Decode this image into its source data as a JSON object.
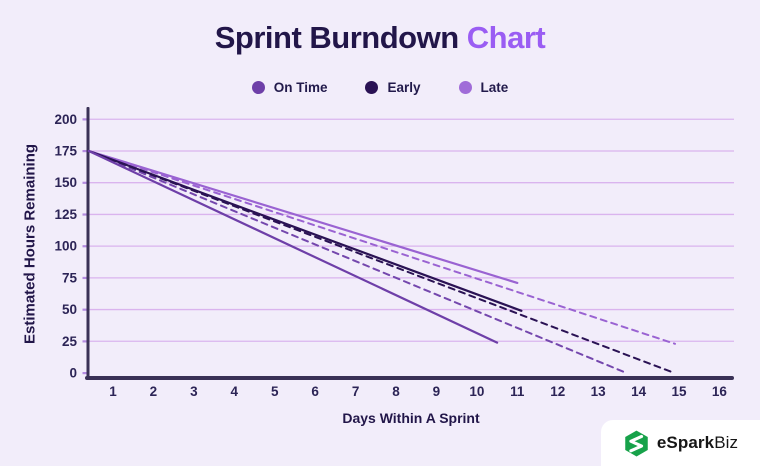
{
  "title": {
    "main": "Sprint Burndown",
    "accent": "Chart"
  },
  "legend": {
    "items": [
      {
        "label": "On Time",
        "color": "#6e3fa8"
      },
      {
        "label": "Early",
        "color": "#2a1254"
      },
      {
        "label": "Late",
        "color": "#a06cd8"
      }
    ]
  },
  "chart_data": {
    "type": "line",
    "title": "Sprint Burndown Chart",
    "xlabel": "Days Within A Sprint",
    "ylabel": "Estimated Hours Remaining",
    "x_ticks": [
      1,
      2,
      3,
      4,
      5,
      6,
      7,
      8,
      9,
      10,
      11,
      12,
      13,
      14,
      15,
      16
    ],
    "y_ticks": [
      0,
      25,
      50,
      75,
      100,
      125,
      150,
      175,
      200
    ],
    "xlim": [
      0,
      16.5
    ],
    "ylim": [
      0,
      210
    ],
    "grid": "horizontal gridlines every 25 hours, no vertical gridlines",
    "legend_position": "top-center",
    "start_point": {
      "day": 0.4,
      "hours": 175
    },
    "series": [
      {
        "name": "On Time (projection)",
        "legend": "On Time",
        "style": "dashed",
        "color": "#7447ad",
        "points": [
          [
            0.4,
            175
          ],
          [
            13.7,
            0
          ]
        ]
      },
      {
        "name": "Early (projection)",
        "legend": "Early",
        "style": "dashed",
        "color": "#2a1254",
        "points": [
          [
            0.4,
            175
          ],
          [
            14.8,
            1
          ]
        ]
      },
      {
        "name": "Late (projection)",
        "legend": "Late",
        "style": "dashed",
        "color": "#9a63d2",
        "points": [
          [
            0.4,
            175
          ],
          [
            14.9,
            23
          ]
        ]
      },
      {
        "name": "Late",
        "legend": "Late",
        "style": "solid",
        "color": "#9a63d2",
        "points": [
          [
            0.4,
            175
          ],
          [
            11.0,
            71
          ]
        ]
      },
      {
        "name": "Early",
        "legend": "Early",
        "style": "solid",
        "color": "#2a1254",
        "points": [
          [
            0.4,
            175
          ],
          [
            11.1,
            49
          ]
        ]
      },
      {
        "name": "On Time",
        "legend": "On Time",
        "style": "solid",
        "color": "#6e3fa8",
        "points": [
          [
            0.4,
            175
          ],
          [
            10.5,
            24
          ]
        ]
      }
    ]
  },
  "axis_style": {
    "axis_color": "#3a3156",
    "grid_color": "#dab4ee",
    "tick_color": "#b48be0",
    "tick_label_color": "#2c2456"
  },
  "background_color": "#f2edfa",
  "logo": {
    "text_bold": "eSpark",
    "text_regular": "Biz",
    "icon": "esparkbiz-hexagon-icon",
    "icon_color": "#17a24a",
    "card_color": "#ffffff"
  }
}
